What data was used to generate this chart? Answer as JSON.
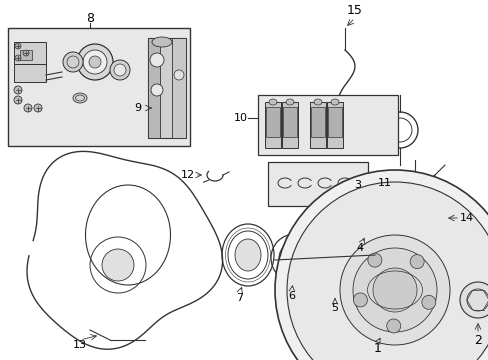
{
  "bg_color": "#ffffff",
  "line_color": "#333333",
  "fill_light": "#e8e8e8",
  "fill_mid": "#cccccc",
  "fill_dark": "#aaaaaa"
}
